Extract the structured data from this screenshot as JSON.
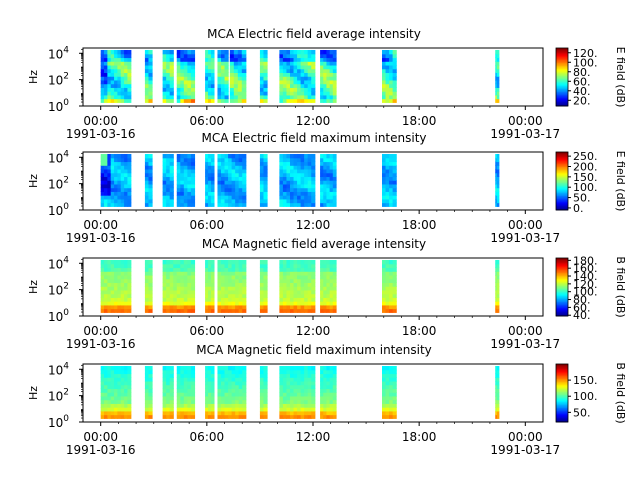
{
  "chart_data": [
    {
      "type": "heatmap",
      "title": "MCA  Electric field average intensity",
      "ylabel": "Hz",
      "ylim_log10": [
        0,
        4.4
      ],
      "y_ticks": [
        {
          "exp": "0",
          "value": 1
        },
        {
          "exp": "2",
          "value": 100
        },
        {
          "exp": "4",
          "value": 10000
        }
      ],
      "xlim_hours": [
        -1,
        25
      ],
      "x_tick_labels": [
        "00:00",
        "06:00",
        "12:00",
        "18:00",
        "00:00"
      ],
      "date_labels": [
        "1991-03-16",
        "1991-03-17"
      ],
      "colorbar_label": "E field (dB)",
      "colorbar_range": [
        8,
        130
      ],
      "colorbar_ticks": [
        "120.",
        "100.",
        "80.",
        "60.",
        "40.",
        "20."
      ],
      "colorbar_tick_values": [
        120,
        100,
        80,
        60,
        40,
        20
      ],
      "data_hours": [
        [
          0.0,
          1.7
        ],
        [
          2.5,
          2.9
        ],
        [
          3.5,
          4.1
        ],
        [
          4.3,
          5.3
        ],
        [
          5.9,
          6.4
        ],
        [
          6.6,
          7.2
        ],
        [
          7.3,
          8.2
        ],
        [
          9.0,
          9.4
        ],
        [
          10.1,
          12.1
        ],
        [
          12.4,
          13.3
        ],
        [
          15.9,
          16.7
        ],
        [
          22.3,
          22.5
        ]
      ],
      "profile": "e_avg"
    },
    {
      "type": "heatmap",
      "title": "MCA  Electric field maximum intensity",
      "ylabel": "Hz",
      "ylim_log10": [
        0,
        4.4
      ],
      "y_ticks": [
        {
          "exp": "0",
          "value": 1
        },
        {
          "exp": "2",
          "value": 100
        },
        {
          "exp": "4",
          "value": 10000
        }
      ],
      "xlim_hours": [
        -1,
        25
      ],
      "x_tick_labels": [
        "00:00",
        "06:00",
        "12:00",
        "18:00",
        "00:00"
      ],
      "date_labels": [
        "1991-03-16",
        "1991-03-17"
      ],
      "colorbar_label": "E field (dB)",
      "colorbar_range": [
        -10,
        270
      ],
      "colorbar_ticks": [
        "250.",
        "200.",
        "150.",
        "100.",
        "50.",
        "0."
      ],
      "colorbar_tick_values": [
        250,
        200,
        150,
        100,
        50,
        0
      ],
      "data_hours": [
        [
          0.0,
          1.7
        ],
        [
          2.5,
          2.9
        ],
        [
          3.5,
          4.1
        ],
        [
          4.3,
          5.3
        ],
        [
          5.9,
          6.4
        ],
        [
          6.6,
          8.2
        ],
        [
          9.0,
          9.4
        ],
        [
          10.1,
          12.1
        ],
        [
          12.4,
          13.3
        ],
        [
          15.9,
          16.7
        ],
        [
          22.3,
          22.5
        ]
      ],
      "profile": "e_max"
    },
    {
      "type": "heatmap",
      "title": "MCA  Magnetic field average intensity",
      "ylabel": "Hz",
      "ylim_log10": [
        0,
        4.4
      ],
      "y_ticks": [
        {
          "exp": "0",
          "value": 1
        },
        {
          "exp": "2",
          "value": 100
        },
        {
          "exp": "4",
          "value": 10000
        }
      ],
      "xlim_hours": [
        -1,
        25
      ],
      "x_tick_labels": [
        "00:00",
        "06:00",
        "12:00",
        "18:00",
        "00:00"
      ],
      "date_labels": [
        "1991-03-16",
        "1991-03-17"
      ],
      "colorbar_label": "B field (dB)",
      "colorbar_range": [
        38,
        186
      ],
      "colorbar_ticks": [
        "180.",
        "160.",
        "140.",
        "120.",
        "100.",
        "80.",
        "60.",
        "40."
      ],
      "colorbar_tick_values": [
        180,
        160,
        140,
        120,
        100,
        80,
        60,
        40
      ],
      "data_hours": [
        [
          0.0,
          1.7
        ],
        [
          2.5,
          2.9
        ],
        [
          3.5,
          5.3
        ],
        [
          5.9,
          6.4
        ],
        [
          6.6,
          8.2
        ],
        [
          9.0,
          9.4
        ],
        [
          10.1,
          12.1
        ],
        [
          12.4,
          13.3
        ],
        [
          15.9,
          16.7
        ],
        [
          22.3,
          22.5
        ]
      ],
      "profile": "b_avg"
    },
    {
      "type": "heatmap",
      "title": "MCA  Magnetic field maximum intensity",
      "ylabel": "Hz",
      "ylim_log10": [
        0,
        4.4
      ],
      "y_ticks": [
        {
          "exp": "0",
          "value": 1
        },
        {
          "exp": "2",
          "value": 100
        },
        {
          "exp": "4",
          "value": 10000
        }
      ],
      "xlim_hours": [
        -1,
        25
      ],
      "x_tick_labels": [
        "00:00",
        "06:00",
        "12:00",
        "18:00",
        "00:00"
      ],
      "date_labels": [
        "1991-03-16",
        "1991-03-17"
      ],
      "colorbar_label": "B field (dB)",
      "colorbar_range": [
        20,
        200
      ],
      "colorbar_ticks": [
        "150.",
        "100.",
        "50."
      ],
      "colorbar_tick_values": [
        150,
        100,
        50
      ],
      "data_hours": [
        [
          0.0,
          1.7
        ],
        [
          2.5,
          2.9
        ],
        [
          3.5,
          4.1
        ],
        [
          4.3,
          5.3
        ],
        [
          5.9,
          6.4
        ],
        [
          6.6,
          8.2
        ],
        [
          9.0,
          9.4
        ],
        [
          10.1,
          12.1
        ],
        [
          12.4,
          13.3
        ],
        [
          15.9,
          16.7
        ],
        [
          22.3,
          22.5
        ]
      ],
      "profile": "b_max"
    }
  ]
}
